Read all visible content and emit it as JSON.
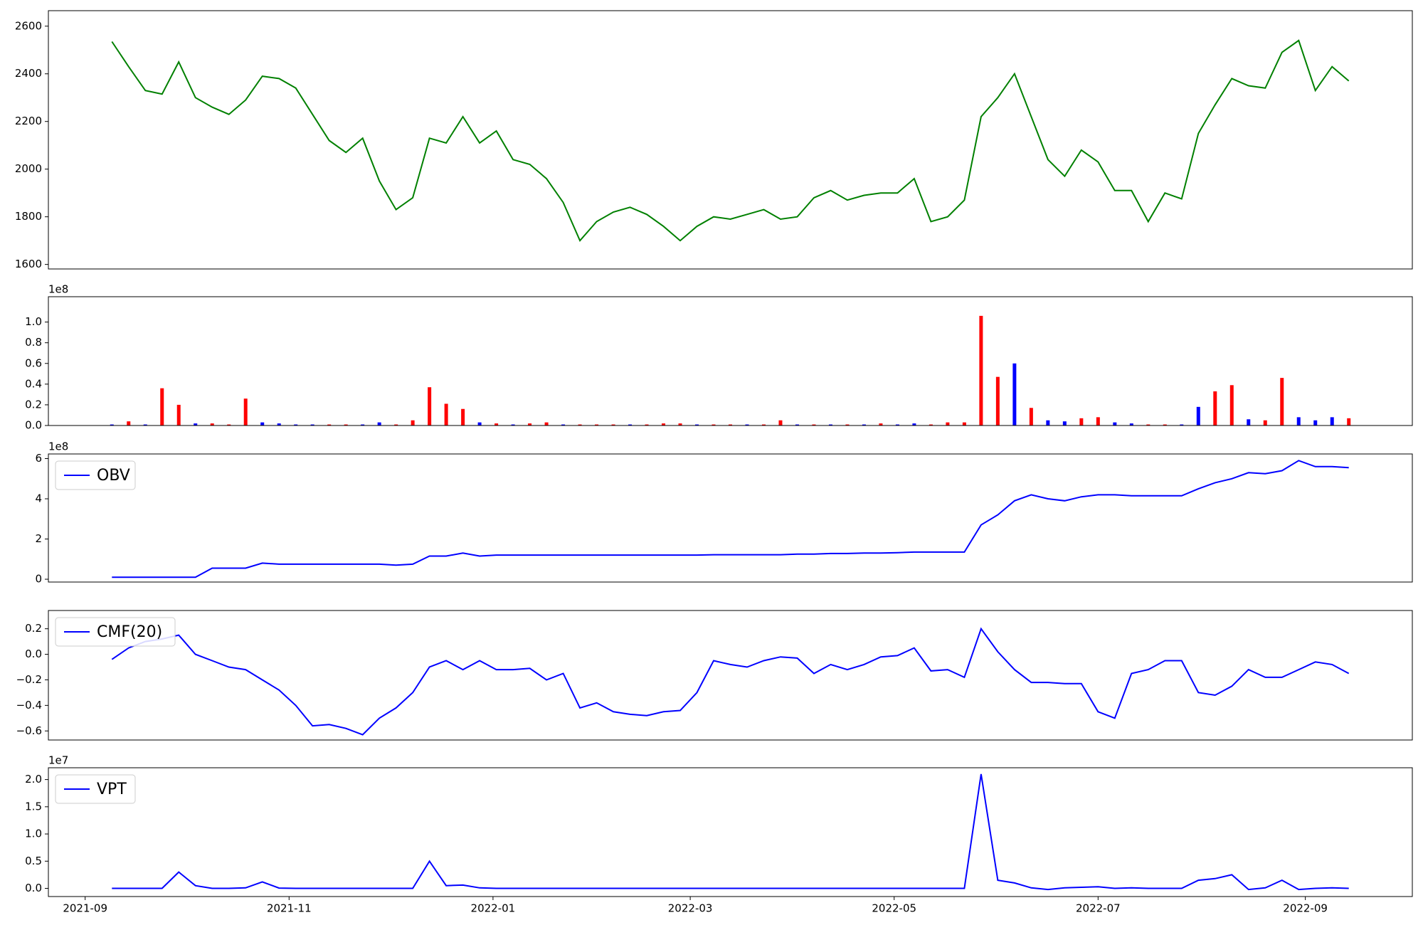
{
  "chart_data": [
    {
      "type": "line",
      "x": [
        18879,
        18884,
        18889,
        18894,
        18899,
        18904,
        18909,
        18914,
        18919,
        18924,
        18929,
        18934,
        18939,
        18944,
        18949,
        18954,
        18959,
        18964,
        18969,
        18974,
        18979,
        18984,
        18989,
        18994,
        18999,
        19004,
        19009,
        19014,
        19019,
        19024,
        19029,
        19034,
        19039,
        19044,
        19049,
        19054,
        19059,
        19064,
        19069,
        19074,
        19079,
        19084,
        19089,
        19094,
        19099,
        19104,
        19109,
        19114,
        19119,
        19124,
        19129,
        19134,
        19139,
        19144,
        19149,
        19154,
        19159,
        19164,
        19169,
        19174,
        19179,
        19184,
        19189,
        19194,
        19199,
        19204,
        19209,
        19214,
        19219,
        19224,
        19229,
        19234,
        19239,
        19244,
        19249
      ],
      "xlim": [
        18860,
        19268
      ],
      "ylim": [
        1581,
        2665
      ],
      "yticks": [
        1600,
        1800,
        2000,
        2200,
        2400,
        2600
      ],
      "series": [
        {
          "color": "green",
          "values": [
            2535,
            2430,
            2330,
            2315,
            2450,
            2300,
            2260,
            2230,
            2290,
            2390,
            2380,
            2340,
            2230,
            2120,
            2070,
            2130,
            1950,
            1830,
            1880,
            2130,
            2110,
            2220,
            2110,
            2160,
            2040,
            2020,
            1960,
            1860,
            1700,
            1780,
            1820,
            1840,
            1810,
            1760,
            1700,
            1760,
            1800,
            1790,
            1810,
            1830,
            1790,
            1800,
            1880,
            1910,
            1870,
            1890,
            1900,
            1900,
            1960,
            1780,
            1800,
            1870,
            2220,
            2300,
            2400,
            2220,
            2040,
            1970,
            2080,
            2030,
            1910,
            1910,
            1780,
            1900,
            1875,
            2150,
            2270,
            2380,
            2350,
            2340,
            2490,
            2540,
            2330,
            2430,
            2370
          ]
        }
      ]
    },
    {
      "type": "bar",
      "offset_label": "1e8",
      "ylim": [
        0,
        1.245
      ],
      "yticks": [
        {
          "value": 0,
          "label": "0.0"
        },
        0.2,
        0.4,
        0.6,
        0.8,
        {
          "value": 1,
          "label": "1.0"
        }
      ],
      "values": [
        0.01,
        0.04,
        0.01,
        0.36,
        0.2,
        0.02,
        0.02,
        0.01,
        0.26,
        0.03,
        0.02,
        0.01,
        0.01,
        0.01,
        0.01,
        0.01,
        0.03,
        0.01,
        0.05,
        0.37,
        0.21,
        0.16,
        0.03,
        0.02,
        0.01,
        0.02,
        0.03,
        0.01,
        0.01,
        0.01,
        0.01,
        0.01,
        0.01,
        0.02,
        0.02,
        0.01,
        0.01,
        0.01,
        0.01,
        0.01,
        0.05,
        0.01,
        0.01,
        0.01,
        0.01,
        0.01,
        0.02,
        0.01,
        0.02,
        0.01,
        0.03,
        0.03,
        1.06,
        0.47,
        0.6,
        0.17,
        0.05,
        0.04,
        0.07,
        0.08,
        0.03,
        0.02,
        0.01,
        0.01,
        0.01,
        0.18,
        0.33,
        0.39,
        0.06,
        0.05,
        0.46,
        0.08,
        0.05,
        0.08,
        0.07
      ],
      "colors": [
        "blue",
        "red",
        "blue",
        "red",
        "red",
        "blue",
        "red",
        "red",
        "red",
        "blue",
        "blue",
        "blue",
        "blue",
        "red",
        "red",
        "blue",
        "blue",
        "red",
        "red",
        "red",
        "red",
        "red",
        "blue",
        "red",
        "blue",
        "red",
        "red",
        "blue",
        "red",
        "red",
        "red",
        "blue",
        "red",
        "red",
        "red",
        "blue",
        "red",
        "red",
        "blue",
        "red",
        "red",
        "blue",
        "red",
        "blue",
        "red",
        "blue",
        "red",
        "blue",
        "blue",
        "red",
        "red",
        "red",
        "red",
        "red",
        "blue",
        "red",
        "blue",
        "blue",
        "red",
        "red",
        "blue",
        "blue",
        "red",
        "red",
        "blue",
        "blue",
        "red",
        "red",
        "blue",
        "red",
        "red",
        "blue",
        "blue",
        "blue",
        "red"
      ]
    },
    {
      "type": "line",
      "offset_label": "1e8",
      "ylim": [
        -0.14,
        6.23
      ],
      "yticks": [
        0,
        2,
        4,
        6
      ],
      "series": [
        {
          "name": "OBV",
          "color": "blue",
          "values": [
            0.1,
            0.1,
            0.1,
            0.1,
            0.1,
            0.1,
            0.55,
            0.55,
            0.55,
            0.8,
            0.75,
            0.75,
            0.75,
            0.75,
            0.75,
            0.75,
            0.75,
            0.7,
            0.75,
            1.15,
            1.15,
            1.3,
            1.15,
            1.2,
            1.2,
            1.2,
            1.2,
            1.2,
            1.2,
            1.2,
            1.2,
            1.2,
            1.2,
            1.2,
            1.2,
            1.2,
            1.22,
            1.22,
            1.22,
            1.22,
            1.22,
            1.25,
            1.25,
            1.28,
            1.28,
            1.3,
            1.3,
            1.32,
            1.35,
            1.35,
            1.35,
            1.35,
            2.7,
            3.2,
            3.9,
            4.2,
            4.0,
            3.9,
            4.1,
            4.2,
            4.2,
            4.15,
            4.15,
            4.15,
            4.15,
            4.5,
            4.8,
            5.0,
            5.3,
            5.25,
            5.4,
            5.9,
            5.6,
            5.6,
            5.55
          ]
        }
      ]
    },
    {
      "type": "line",
      "ylim": [
        -0.671,
        0.343
      ],
      "yticks": [
        {
          "value": -0.6,
          "label": "−0.6"
        },
        {
          "value": -0.4,
          "label": "−0.4"
        },
        {
          "value": -0.2,
          "label": "−0.2"
        },
        {
          "value": 0,
          "label": "0.0"
        },
        0.2
      ],
      "series": [
        {
          "name": "CMF(20)",
          "color": "blue",
          "values": [
            -0.04,
            0.05,
            0.1,
            0.12,
            0.15,
            0.0,
            -0.05,
            -0.1,
            -0.12,
            -0.2,
            -0.28,
            -0.4,
            -0.56,
            -0.55,
            -0.58,
            -0.63,
            -0.5,
            -0.42,
            -0.3,
            -0.1,
            -0.05,
            -0.12,
            -0.05,
            -0.12,
            -0.12,
            -0.11,
            -0.2,
            -0.15,
            -0.42,
            -0.38,
            -0.45,
            -0.47,
            -0.48,
            -0.45,
            -0.44,
            -0.3,
            -0.05,
            -0.08,
            -0.1,
            -0.05,
            -0.02,
            -0.03,
            -0.15,
            -0.08,
            -0.12,
            -0.08,
            -0.02,
            -0.01,
            0.05,
            -0.13,
            -0.12,
            -0.18,
            0.2,
            0.02,
            -0.12,
            -0.22,
            -0.22,
            -0.23,
            -0.23,
            -0.45,
            -0.5,
            -0.15,
            -0.12,
            -0.05,
            -0.05,
            -0.3,
            -0.32,
            -0.25,
            -0.12,
            -0.18,
            -0.18,
            -0.12,
            -0.06,
            -0.08,
            -0.15
          ]
        }
      ]
    },
    {
      "type": "line",
      "offset_label": "1e7",
      "ylim": [
        -0.15,
        2.217
      ],
      "yticks": [
        {
          "value": 0,
          "label": "0.0"
        },
        0.5,
        {
          "value": 1,
          "label": "1.0"
        },
        1.5,
        {
          "value": 2,
          "label": "2.0"
        }
      ],
      "xticks": [
        {
          "value": 18871,
          "label": "2021-09"
        },
        {
          "value": 18932,
          "label": "2021-11"
        },
        {
          "value": 18993,
          "label": "2022-01"
        },
        {
          "value": 19052,
          "label": "2022-03"
        },
        {
          "value": 19113,
          "label": "2022-05"
        },
        {
          "value": 19174,
          "label": "2022-07"
        },
        {
          "value": 19236,
          "label": "2022-09"
        }
      ],
      "series": [
        {
          "name": "VPT",
          "color": "blue",
          "values": [
            0,
            0,
            0,
            0,
            0.3,
            0.05,
            0,
            0,
            0.01,
            0.12,
            0.005,
            0,
            0,
            0,
            0,
            0,
            0,
            0,
            0,
            0.5,
            0.05,
            0.06,
            0.01,
            0,
            0,
            0,
            0,
            0,
            0,
            0,
            0,
            0,
            0,
            0,
            0,
            0,
            0,
            0,
            0,
            0,
            0,
            0,
            0,
            0,
            0,
            0,
            0,
            0,
            0,
            0,
            0,
            0,
            2.1,
            0.15,
            0.1,
            0.01,
            -0.02,
            0.01,
            0.02,
            0.03,
            0,
            0.01,
            0,
            0,
            0,
            0.15,
            0.18,
            0.25,
            -0.02,
            0.01,
            0.15,
            -0.02,
            0,
            0.01,
            0
          ]
        }
      ]
    }
  ]
}
